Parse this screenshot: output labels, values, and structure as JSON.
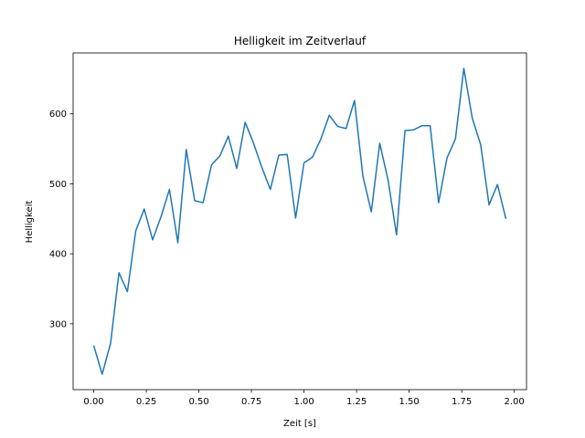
{
  "chart_data": {
    "type": "line",
    "title": "Helligkeit im Zeitverlauf",
    "xlabel": "Zeit [s]",
    "ylabel": "Helligkeit",
    "xlim": [
      -0.098,
      2.058
    ],
    "ylim": [
      206,
      687
    ],
    "xticks": [
      0.0,
      0.25,
      0.5,
      0.75,
      1.0,
      1.25,
      1.5,
      1.75,
      2.0
    ],
    "xtick_labels": [
      "0.00",
      "0.25",
      "0.50",
      "0.75",
      "1.00",
      "1.25",
      "1.50",
      "1.75",
      "2.00"
    ],
    "yticks": [
      300,
      400,
      500,
      600
    ],
    "ytick_labels": [
      "300",
      "400",
      "500",
      "600"
    ],
    "grid": false,
    "series_color": "#1f77b4",
    "x": [
      0.0,
      0.04,
      0.08,
      0.12,
      0.16,
      0.2,
      0.24,
      0.28,
      0.32,
      0.36,
      0.4,
      0.44,
      0.48,
      0.52,
      0.56,
      0.6,
      0.64,
      0.68,
      0.72,
      0.76,
      0.8,
      0.84,
      0.88,
      0.92,
      0.96,
      1.0,
      1.04,
      1.08,
      1.12,
      1.16,
      1.2,
      1.24,
      1.28,
      1.32,
      1.36,
      1.4,
      1.44,
      1.48,
      1.52,
      1.56,
      1.6,
      1.64,
      1.68,
      1.72,
      1.76,
      1.8,
      1.84,
      1.88,
      1.92,
      1.96
    ],
    "values": [
      269,
      228,
      272,
      373,
      346,
      433,
      464,
      420,
      453,
      492,
      416,
      549,
      476,
      473,
      527,
      540,
      568,
      522,
      588,
      558,
      523,
      492,
      541,
      542,
      451,
      530,
      538,
      564,
      598,
      582,
      579,
      619,
      511,
      460,
      558,
      505,
      427,
      576,
      577,
      583,
      583,
      473,
      537,
      564,
      665,
      594,
      556,
      470,
      499,
      450
    ]
  }
}
